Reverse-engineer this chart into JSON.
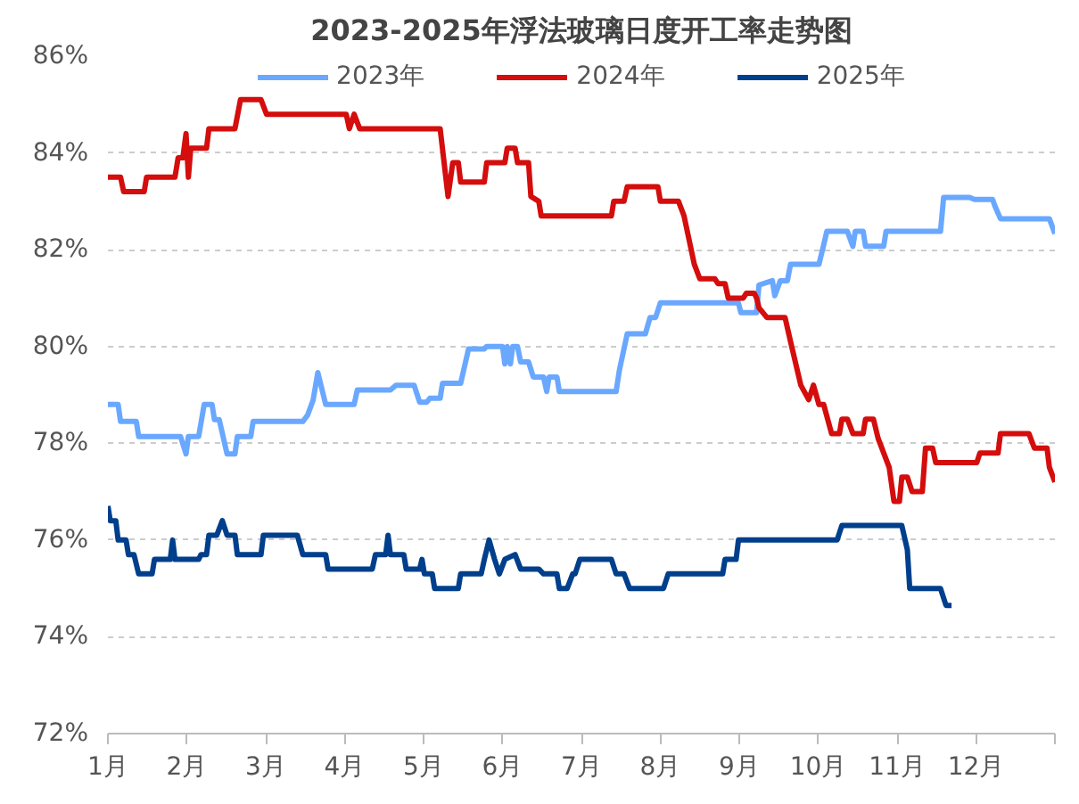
{
  "chart_data": {
    "type": "line",
    "title": "2023-2025年浮法玻璃日度开工率走势图",
    "xlim": [
      1,
      13
    ],
    "xticks": [
      {
        "value": 1,
        "label": "1月"
      },
      {
        "value": 2,
        "label": "2月"
      },
      {
        "value": 3,
        "label": "3月"
      },
      {
        "value": 4,
        "label": "4月"
      },
      {
        "value": 5,
        "label": "5月"
      },
      {
        "value": 6,
        "label": "6月"
      },
      {
        "value": 7,
        "label": "7月"
      },
      {
        "value": 8,
        "label": "8月"
      },
      {
        "value": 9,
        "label": "9月"
      },
      {
        "value": 10,
        "label": "10月"
      },
      {
        "value": 11,
        "label": "11月"
      },
      {
        "value": 12,
        "label": "12月"
      },
      {
        "value": 13,
        "label": null
      }
    ],
    "ylim": [
      72,
      86
    ],
    "yticks": [
      {
        "value": 72,
        "label": "72%"
      },
      {
        "value": 74,
        "label": "74%"
      },
      {
        "value": 76,
        "label": "76%"
      },
      {
        "value": 78,
        "label": "78%"
      },
      {
        "value": 80,
        "label": "80%"
      },
      {
        "value": 82,
        "label": "82%"
      },
      {
        "value": 84,
        "label": "84%"
      },
      {
        "value": 86,
        "label": "86%"
      }
    ],
    "grid": "y",
    "legend": "top",
    "marker": "none",
    "line_style": "solid",
    "series": [
      {
        "name": "2023年",
        "color": "#6aa8ff",
        "x": [
          1,
          1.13,
          1.16,
          1.36,
          1.39,
          1.92,
          1.99,
          2.02,
          2.15,
          2.22,
          2.32,
          2.35,
          2.41,
          2.51,
          2.61,
          2.64,
          2.81,
          2.84,
          3.47,
          3.53,
          3.6,
          3.66,
          3.76,
          4.12,
          4.16,
          4.58,
          4.65,
          4.88,
          4.95,
          5.04,
          5.08,
          5.21,
          5.24,
          5.47,
          5.57,
          5.77,
          5.8,
          6.0,
          6.03,
          6.06,
          6.1,
          6.13,
          6.19,
          6.23,
          6.33,
          6.39,
          6.42,
          6.52,
          6.56,
          6.59,
          6.69,
          6.72,
          7.44,
          7.48,
          7.58,
          7.81,
          7.87,
          7.94,
          8.0,
          8.99,
          9.02,
          9.22,
          9.25,
          9.42,
          9.45,
          9.52,
          9.61,
          9.65,
          10.01,
          10.07,
          10.11,
          10.37,
          10.44,
          10.47,
          10.57,
          10.6,
          10.83,
          10.86,
          11.55,
          11.59,
          11.92,
          11.98,
          12.21,
          12.24,
          12.31,
          12.93,
          13.0
        ],
        "values": [
          78.8,
          78.8,
          78.45,
          78.45,
          78.14,
          78.14,
          77.78,
          78.14,
          78.14,
          78.8,
          78.8,
          78.49,
          78.49,
          77.78,
          77.78,
          78.14,
          78.14,
          78.45,
          78.45,
          78.58,
          78.89,
          79.46,
          78.8,
          78.8,
          79.1,
          79.1,
          79.2,
          79.2,
          78.85,
          78.85,
          78.93,
          78.93,
          79.24,
          79.24,
          79.95,
          79.95,
          80.0,
          80.0,
          79.64,
          80.0,
          79.64,
          80.0,
          80.0,
          79.68,
          79.68,
          79.37,
          79.37,
          79.37,
          79.07,
          79.37,
          79.37,
          79.07,
          79.07,
          79.5,
          80.26,
          80.26,
          80.6,
          80.6,
          80.9,
          80.9,
          80.7,
          80.7,
          81.27,
          81.36,
          81.05,
          81.36,
          81.36,
          81.7,
          81.7,
          82.1,
          82.38,
          82.38,
          82.07,
          82.38,
          82.38,
          82.07,
          82.07,
          82.38,
          82.38,
          83.08,
          83.08,
          83.04,
          83.04,
          82.9,
          82.64,
          82.64,
          82.33
        ]
      },
      {
        "name": "2024年",
        "color": "#d40d0d",
        "x": [
          1,
          1.16,
          1.2,
          1.46,
          1.49,
          1.85,
          1.89,
          1.95,
          1.99,
          2.02,
          2.05,
          2.25,
          2.28,
          2.61,
          2.68,
          2.94,
          3.01,
          4.02,
          4.06,
          4.12,
          4.19,
          4.22,
          5.21,
          5.31,
          5.37,
          5.44,
          5.47,
          5.77,
          5.8,
          6.03,
          6.06,
          6.16,
          6.19,
          6.33,
          6.36,
          6.46,
          6.49,
          7.38,
          7.41,
          7.54,
          7.58,
          7.97,
          8.0,
          8.23,
          8.3,
          8.43,
          8.5,
          8.69,
          8.73,
          8.82,
          8.86,
          9.05,
          9.09,
          9.19,
          9.22,
          9.25,
          9.35,
          9.58,
          9.65,
          9.78,
          9.88,
          9.94,
          10.01,
          10.07,
          10.17,
          10.27,
          10.3,
          10.37,
          10.44,
          10.57,
          10.6,
          10.7,
          10.76,
          10.83,
          10.9,
          10.96,
          11.03,
          11.06,
          11.13,
          11.19,
          11.32,
          11.36,
          11.45,
          11.49,
          12.01,
          12.05,
          12.28,
          12.31,
          12.67,
          12.74,
          12.9,
          12.93,
          13.0
        ],
        "values": [
          83.5,
          83.5,
          83.2,
          83.2,
          83.5,
          83.5,
          83.9,
          83.9,
          84.4,
          83.5,
          84.1,
          84.1,
          84.5,
          84.5,
          85.1,
          85.1,
          84.8,
          84.8,
          84.5,
          84.8,
          84.5,
          84.5,
          84.5,
          83.1,
          83.8,
          83.8,
          83.4,
          83.4,
          83.8,
          83.8,
          84.1,
          84.1,
          83.8,
          83.8,
          83.1,
          83.0,
          82.7,
          82.7,
          83.0,
          83.0,
          83.3,
          83.3,
          83.0,
          83.0,
          82.7,
          81.7,
          81.4,
          81.4,
          81.3,
          81.3,
          81.0,
          81.0,
          81.1,
          81.1,
          81.0,
          80.8,
          80.6,
          80.6,
          80.1,
          79.2,
          78.9,
          79.2,
          78.8,
          78.8,
          78.2,
          78.2,
          78.5,
          78.5,
          78.2,
          78.2,
          78.5,
          78.5,
          78.1,
          77.8,
          77.5,
          76.8,
          76.8,
          77.3,
          77.3,
          77.0,
          77.0,
          77.9,
          77.9,
          77.6,
          77.6,
          77.8,
          77.8,
          78.2,
          78.2,
          77.9,
          77.9,
          77.5,
          77.2
        ]
      },
      {
        "name": "2025年",
        "color": "#003f8c",
        "x": [
          1,
          1.03,
          1.1,
          1.13,
          1.23,
          1.26,
          1.33,
          1.39,
          1.56,
          1.59,
          1.79,
          1.82,
          1.85,
          2.15,
          2.18,
          2.25,
          2.28,
          2.38,
          2.45,
          2.51,
          2.61,
          2.64,
          2.94,
          2.97,
          3.4,
          3.47,
          3.76,
          3.79,
          4.35,
          4.39,
          4.52,
          4.55,
          4.58,
          4.75,
          4.78,
          4.95,
          4.98,
          5.01,
          5.11,
          5.14,
          5.44,
          5.47,
          5.73,
          5.77,
          5.83,
          5.9,
          5.96,
          6.03,
          6.16,
          6.23,
          6.46,
          6.52,
          6.69,
          6.72,
          6.82,
          6.89,
          6.92,
          6.98,
          7.38,
          7.44,
          7.54,
          7.61,
          8.04,
          8.1,
          8.79,
          8.82,
          8.96,
          8.99,
          10.24,
          10.3,
          11.06,
          11.13,
          11.16,
          11.55,
          11.62,
          11.69
        ],
        "values": [
          76.7,
          76.4,
          76.4,
          76.0,
          76.0,
          75.7,
          75.7,
          75.3,
          75.3,
          75.6,
          75.6,
          76.0,
          75.6,
          75.6,
          75.7,
          75.7,
          76.1,
          76.1,
          76.4,
          76.1,
          76.1,
          75.7,
          75.7,
          76.1,
          76.1,
          75.7,
          75.7,
          75.4,
          75.4,
          75.7,
          75.7,
          76.1,
          75.7,
          75.7,
          75.4,
          75.4,
          75.6,
          75.3,
          75.3,
          75.0,
          75.0,
          75.3,
          75.3,
          75.6,
          76.0,
          75.6,
          75.3,
          75.6,
          75.7,
          75.4,
          75.4,
          75.3,
          75.3,
          75.0,
          75.0,
          75.3,
          75.3,
          75.6,
          75.6,
          75.3,
          75.3,
          75.0,
          75.0,
          75.3,
          75.3,
          75.6,
          75.6,
          76.0,
          76.0,
          76.3,
          76.3,
          75.8,
          75.0,
          75.0,
          74.65,
          74.65
        ]
      }
    ]
  }
}
